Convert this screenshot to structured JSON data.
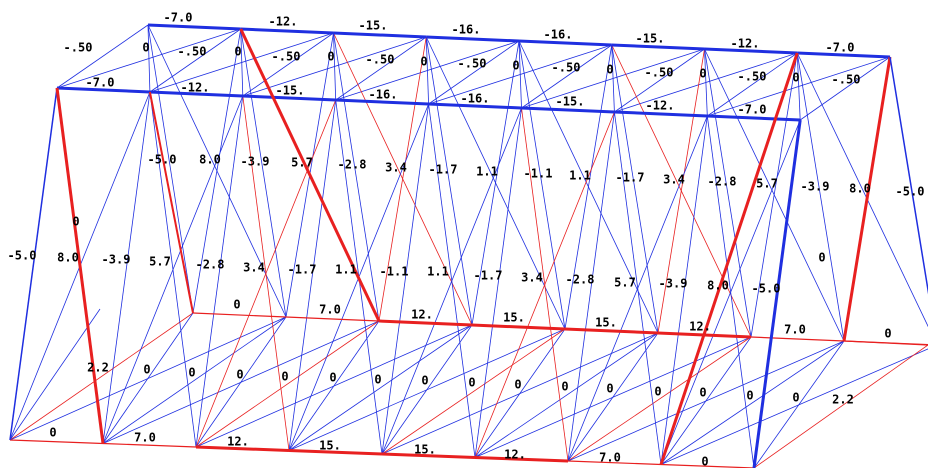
{
  "labels": {
    "back_top_chord": [
      "-7.0",
      "-12.",
      "-15.",
      "-16.",
      "-16.",
      "-15.",
      "-12.",
      "-7.0"
    ],
    "top_lateral": [
      "-.50",
      "0",
      "-.50",
      "0",
      "-.50",
      "0",
      "-.50",
      "0",
      "-.50",
      "0",
      "-.50",
      "0",
      "-.50",
      "0",
      "-.50",
      "0",
      "-.50"
    ],
    "front_top_chord": [
      "-7.0",
      "-12.",
      "-15.",
      "-16.",
      "-16.",
      "-15.",
      "-12.",
      "-7.0"
    ],
    "back_web": [
      "-5.0",
      "8.0",
      "-3.9",
      "5.7",
      "-2.8",
      "3.4",
      "-1.7",
      "1.1",
      "-1.1",
      "1.1",
      "-1.7",
      "3.4",
      "-2.8",
      "5.7",
      "-3.9",
      "8.0",
      "-5.0"
    ],
    "end_posts": [
      "0",
      "0"
    ],
    "front_web": [
      "-5.0",
      "8.0",
      "-3.9",
      "5.7",
      "-2.8",
      "3.4",
      "-1.7",
      "1.1",
      "-1.1",
      "1.1",
      "-1.7",
      "3.4",
      "-2.8",
      "5.7",
      "-3.9",
      "8.0",
      "-5.0"
    ],
    "back_bottom_chord": [
      "0",
      "7.0",
      "12.",
      "15.",
      "15.",
      "12.",
      "7.0",
      "0"
    ],
    "bottom_lateral": [
      "2.2",
      "0",
      "0",
      "0",
      "0",
      "0",
      "0",
      "0",
      "0",
      "0",
      "0",
      "0",
      "0",
      "0",
      "0",
      "0",
      "2.2"
    ],
    "front_bottom_chord": [
      "0",
      "7.0",
      "12.",
      "15.",
      "15.",
      "12.",
      "7.0",
      "0"
    ]
  }
}
